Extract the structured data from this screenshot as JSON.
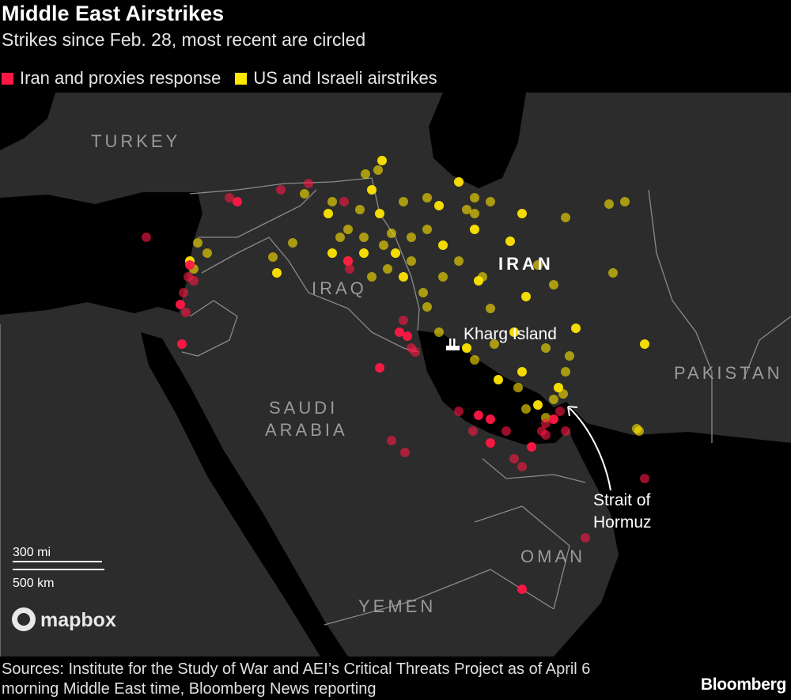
{
  "header": {
    "title": "Middle East Airstrikes",
    "subtitle": "Strikes since Feb. 28, most recent are circled"
  },
  "legend": [
    {
      "label": "Iran and proxies response",
      "color": "#ff1744"
    },
    {
      "label": "US and Israeli airstrikes",
      "color": "#ffe600"
    }
  ],
  "map": {
    "country_labels": {
      "turkey": "TURKEY",
      "iraq": "IRAQ",
      "iran": "IRAN",
      "saudi_line1": "SAUDI",
      "saudi_line2": "ARABIA",
      "pakistan": "PAKISTAN",
      "oman": "OMAN",
      "yemen": "YEMEN"
    },
    "annotations": {
      "kharg": "Kharg Island",
      "hormuz_line1": "Strait of",
      "hormuz_line2": "Hormuz"
    },
    "scale": {
      "miles": "300 mi",
      "km": "500 km"
    },
    "attribution": "mapbox",
    "colors": {
      "land": "#2c2c2c",
      "water": "#000000",
      "border": "#8a8a8a"
    }
  },
  "footer": {
    "sources": "Sources: Institute for the Study of War and AEI’s Critical Threats Project as of April 6 morning Middle East time, Bloomberg News reporting",
    "brand": "Bloomberg"
  }
}
